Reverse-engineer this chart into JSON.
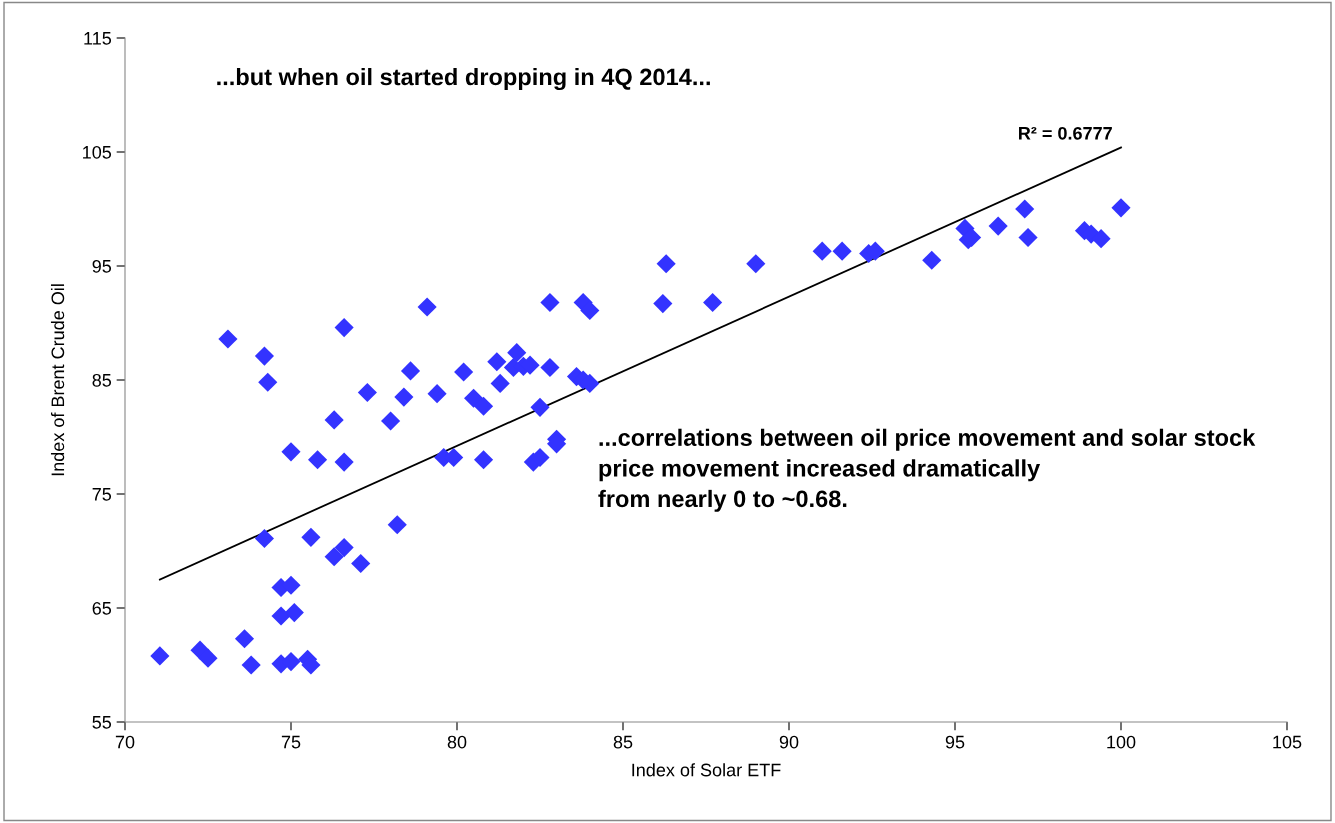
{
  "chart_data": {
    "type": "scatter",
    "xlabel": "Index of Solar ETF",
    "ylabel": "Index of Brent Crude Oil",
    "xlim": [
      70,
      105
    ],
    "xticks": [
      70,
      75,
      80,
      85,
      90,
      95,
      100,
      105
    ],
    "ylim": [
      55,
      115
    ],
    "yticks": [
      55,
      65,
      75,
      85,
      95,
      105,
      115
    ],
    "grid": false,
    "legend": false,
    "marker": "diamond",
    "series": [
      {
        "color": "#3333ff",
        "x": [
          71.05,
          72.26,
          72.5,
          73.6,
          73.8,
          73.1,
          74.2,
          74.3,
          74.2,
          74.7,
          75.0,
          74.7,
          75.1,
          74.7,
          75.0,
          75.5,
          75.6,
          75.0,
          75.6,
          75.8,
          76.6,
          76.6,
          76.3,
          76.3,
          76.6,
          77.1,
          77.3,
          78.0,
          78.2,
          78.4,
          78.6,
          79.1,
          79.4,
          79.6,
          79.9,
          80.2,
          80.5,
          80.8,
          80.8,
          81.2,
          81.3,
          81.8,
          81.7,
          82.0,
          82.2,
          82.8,
          82.5,
          82.3,
          82.5,
          83.0,
          83.0,
          82.8,
          83.6,
          83.8,
          84.0,
          83.8,
          84.0,
          86.2,
          86.3,
          87.7,
          89.0,
          91.0,
          91.6,
          92.4,
          92.6,
          94.3,
          95.3,
          95.4,
          95.5,
          96.3,
          97.1,
          97.2,
          98.9,
          99.1,
          99.4,
          100.0
        ],
        "values": [
          60.8,
          61.3,
          60.6,
          62.3,
          60.0,
          88.6,
          87.1,
          84.8,
          71.1,
          66.8,
          67.0,
          64.3,
          64.6,
          60.1,
          60.3,
          60.5,
          60.0,
          78.7,
          71.2,
          78.0,
          77.8,
          89.6,
          81.5,
          69.5,
          70.3,
          68.9,
          83.9,
          81.4,
          72.3,
          83.5,
          85.8,
          91.4,
          83.8,
          78.2,
          78.2,
          85.7,
          83.4,
          82.7,
          78.0,
          86.6,
          84.7,
          87.4,
          86.1,
          86.2,
          86.3,
          86.1,
          82.6,
          77.8,
          78.2,
          79.8,
          79.4,
          91.8,
          85.3,
          85.0,
          84.7,
          91.8,
          91.1,
          91.7,
          95.2,
          91.8,
          95.2,
          96.3,
          96.3,
          96.1,
          96.3,
          95.5,
          98.3,
          97.3,
          97.5,
          98.5,
          100.0,
          97.5,
          98.1,
          97.8,
          97.4,
          100.1
        ]
      },
      {
        "type": "line",
        "color": "#000000",
        "marker": "none",
        "line_style": "solid",
        "x": [
          71.05,
          100.0
        ],
        "values": [
          67.5,
          105.4
        ]
      }
    ],
    "annotations": [
      {
        "text": "...but when oil started dropping in 4Q 2014..."
      },
      {
        "text": "...correlations between oil price movement and solar stock\nprice movement increased dramatically\nfrom nearly 0 to ~0.68."
      },
      {
        "text": "R² = 0.6777",
        "x": 100.0,
        "y": 105.4
      }
    ]
  }
}
